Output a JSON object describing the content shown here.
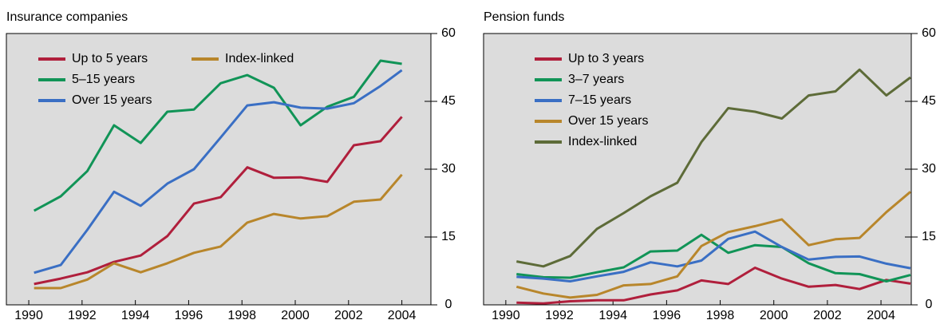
{
  "chart_data": [
    {
      "type": "line",
      "title": "Insurance companies",
      "x": [
        1990.2,
        1991.2,
        1992.2,
        1993.2,
        1994.2,
        1995.2,
        1996.2,
        1997.2,
        1998.2,
        1999.2,
        2000.2,
        2001.2,
        2002.2,
        2003.2,
        2004.0
      ],
      "series": [
        {
          "name": "Up to 5 years",
          "color": "#b01f3c",
          "values": [
            4.6,
            5.8,
            7.2,
            9.5,
            10.9,
            15.2,
            22.4,
            23.8,
            30.4,
            28.1,
            28.2,
            27.2,
            35.3,
            36.2,
            41.6
          ]
        },
        {
          "name": "5–15 years",
          "color": "#119457",
          "values": [
            20.8,
            24,
            29.6,
            39.7,
            35.8,
            42.7,
            43.2,
            49,
            50.8,
            48,
            39.7,
            43.8,
            46,
            54,
            53.3
          ]
        },
        {
          "name": "Over 15 years",
          "color": "#3a6fc4",
          "values": [
            7.1,
            8.8,
            16.6,
            25,
            21.9,
            26.8,
            30,
            37,
            44.1,
            44.8,
            43.6,
            43.4,
            44.6,
            48.4,
            51.9
          ]
        },
        {
          "name": "Index-linked",
          "color": "#b8862b",
          "values": [
            3.7,
            3.7,
            5.6,
            9.2,
            7.2,
            9.2,
            11.5,
            12.9,
            18.2,
            20.1,
            19.1,
            19.6,
            22.8,
            23.3,
            28.8
          ]
        }
      ],
      "xlim": [
        1989.16,
        2005.09
      ],
      "xticks": [
        1990,
        1992,
        1994,
        1996,
        1998,
        2000,
        2002,
        2004
      ],
      "ylim": [
        0,
        60
      ],
      "yticks": [
        0,
        15,
        30,
        45,
        60
      ]
    },
    {
      "type": "line",
      "title": "Pension funds",
      "x": [
        1990.4,
        1991.4,
        1992.4,
        1993.4,
        1994.4,
        1995.4,
        1996.4,
        1997.3,
        1998.3,
        1999.3,
        2000.3,
        2001.3,
        2002.3,
        2003.2,
        2004.2,
        2005.1
      ],
      "series": [
        {
          "name": "Up to 3 years",
          "color": "#b01f3c",
          "values": [
            0.5,
            0.3,
            0.8,
            1.0,
            1.0,
            2.3,
            3.2,
            5.4,
            4.6,
            8.2,
            5.8,
            4.0,
            4.4,
            3.5,
            5.5,
            4.7
          ]
        },
        {
          "name": "3–7 years",
          "color": "#119457",
          "values": [
            6.8,
            6.1,
            6.0,
            7.2,
            8.3,
            11.8,
            12,
            15.5,
            11.5,
            13.2,
            12.8,
            9.2,
            7.0,
            6.8,
            5.2,
            6.6
          ]
        },
        {
          "name": "7–15 years",
          "color": "#3a6fc4",
          "values": [
            6.2,
            5.8,
            5.2,
            6.3,
            7.3,
            9.4,
            8.5,
            9.8,
            14.6,
            16.2,
            12.8,
            10.0,
            10.6,
            10.7,
            9.1,
            8.1
          ]
        },
        {
          "name": "Over 15 years",
          "color": "#b8862b",
          "values": [
            4.0,
            2.5,
            1.6,
            2.2,
            4.3,
            4.6,
            6.3,
            13.0,
            16.1,
            17.4,
            18.9,
            13.2,
            14.5,
            14.8,
            20.5,
            25.0
          ]
        },
        {
          "name": "Index-linked",
          "color": "#5d6b38",
          "values": [
            9.6,
            8.5,
            10.8,
            16.8,
            20.3,
            24,
            27,
            36,
            43.5,
            42.7,
            41.2,
            46.3,
            47.2,
            52,
            46.3,
            50.3
          ]
        }
      ],
      "xlim": [
        1989.17,
        2005.13
      ],
      "xticks": [
        1990,
        1992,
        1994,
        1996,
        1998,
        2000,
        2002,
        2004
      ],
      "ylim": [
        0,
        60
      ],
      "yticks": [
        0,
        15,
        30,
        45,
        60
      ]
    }
  ]
}
